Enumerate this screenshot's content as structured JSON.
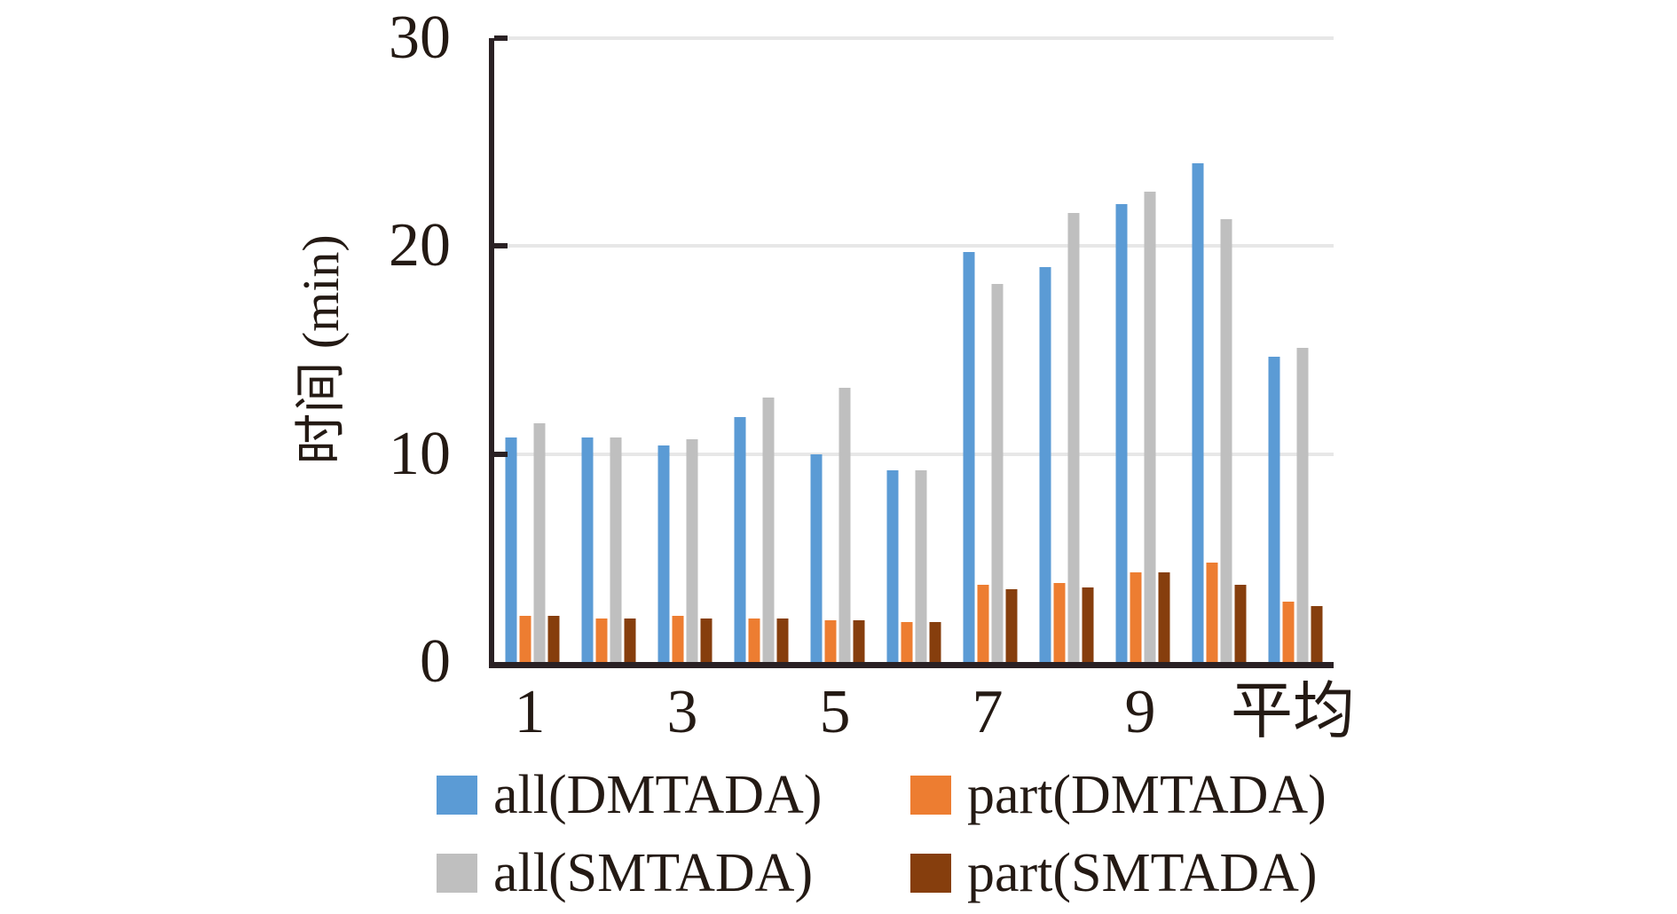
{
  "chart_data": {
    "type": "bar",
    "title": "",
    "xlabel": "",
    "ylabel": "时间 (min)",
    "ylim": [
      0,
      30
    ],
    "yticks": [
      0,
      10,
      20,
      30
    ],
    "grid": "horizontal",
    "legend_position": "bottom",
    "groups": [
      "1",
      "2",
      "3",
      "4",
      "5",
      "6",
      "7",
      "8",
      "9",
      "10",
      "平均"
    ],
    "x_tick_labels": [
      {
        "group_index": 0,
        "label": "1"
      },
      {
        "group_index": 2,
        "label": "3"
      },
      {
        "group_index": 4,
        "label": "5"
      },
      {
        "group_index": 6,
        "label": "7"
      },
      {
        "group_index": 8,
        "label": "9"
      },
      {
        "group_index": 10,
        "label": "平均"
      }
    ],
    "series": [
      {
        "name": "all(DMTADA)",
        "color": "#5B9BD5",
        "values": [
          10.8,
          10.8,
          10.4,
          11.8,
          10.0,
          9.2,
          19.7,
          19.0,
          22.0,
          24.0,
          14.7
        ]
      },
      {
        "name": "part(DMTADA)",
        "color": "#ED7D31",
        "values": [
          2.2,
          2.1,
          2.2,
          2.1,
          2.0,
          1.9,
          3.7,
          3.8,
          4.3,
          4.8,
          2.9
        ]
      },
      {
        "name": "all(SMTADA)",
        "color": "#BFBFBF",
        "values": [
          11.5,
          10.8,
          10.7,
          12.7,
          13.2,
          9.2,
          18.2,
          21.6,
          22.6,
          21.3,
          15.1
        ]
      },
      {
        "name": "part(SMTADA)",
        "color": "#863E0D",
        "values": [
          2.2,
          2.1,
          2.1,
          2.1,
          2.0,
          1.9,
          3.5,
          3.6,
          4.3,
          3.7,
          2.7
        ]
      }
    ],
    "colors": {
      "axis": "#2A2124",
      "gridline": "#E7E7E7",
      "text": "#241A14"
    }
  }
}
